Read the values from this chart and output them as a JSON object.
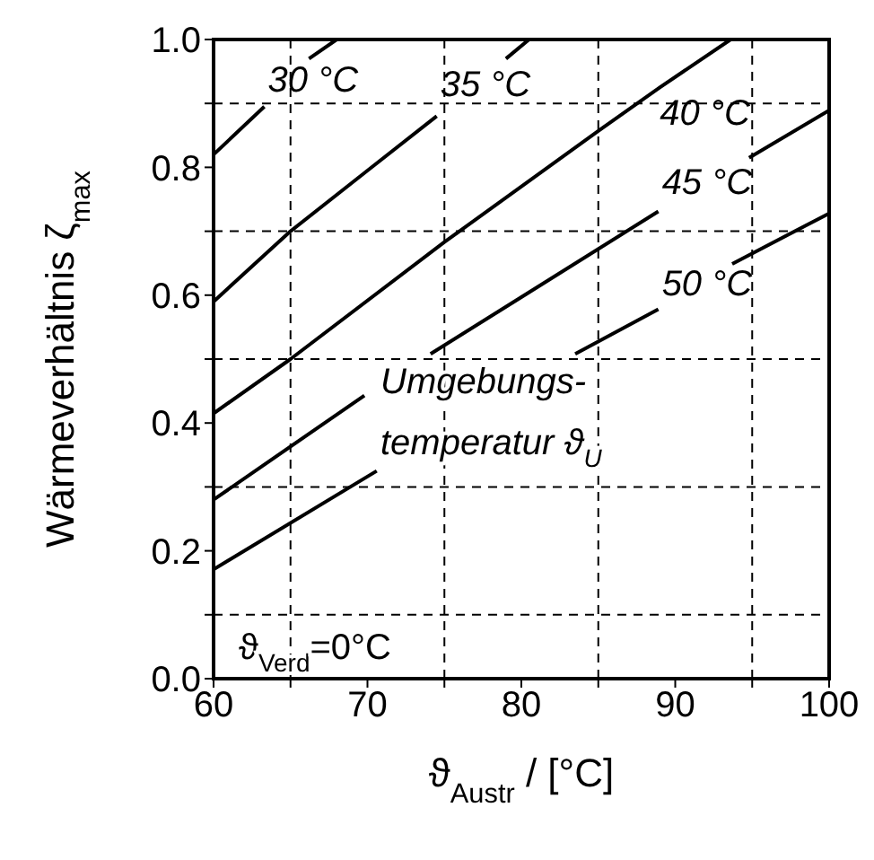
{
  "chart_data": {
    "type": "line",
    "xlabel": "ϑ$_{Austr}$ / [°C]",
    "ylabel": "Wärmeverhältnis ζ$_{max}$",
    "xlim": [
      60,
      100
    ],
    "ylim": [
      0,
      1
    ],
    "xticks": [
      60,
      {
        "value": 65,
        "label": null
      },
      70,
      {
        "value": 75,
        "label": null
      },
      80,
      {
        "value": 85,
        "label": null
      },
      90,
      {
        "value": 95,
        "label": null
      },
      100
    ],
    "yticks": [
      {
        "value": 0,
        "label": "0.0"
      },
      {
        "value": 0.1,
        "label": null
      },
      {
        "value": 0.2,
        "label": "0.2"
      },
      {
        "value": 0.3,
        "label": null
      },
      {
        "value": 0.4,
        "label": "0.4"
      },
      {
        "value": 0.5,
        "label": null
      },
      {
        "value": 0.6,
        "label": "0.6"
      },
      {
        "value": 0.7,
        "label": null
      },
      {
        "value": 0.8,
        "label": "0.8"
      },
      {
        "value": 0.9,
        "label": null
      },
      {
        "value": 1,
        "label": "1.0"
      }
    ],
    "grid": true,
    "series": [
      {
        "name": "30 °C",
        "color": "#000000",
        "x": [
          60,
          63.3,
          64.7,
          66.2,
          68
        ],
        "values": [
          0.82,
          0.895,
          null,
          0.97,
          1.0
        ]
      },
      {
        "name": "35 °C",
        "color": "#000000",
        "x": [
          60,
          65,
          70,
          74.5,
          76.7,
          79,
          80.5
        ],
        "values": [
          0.59,
          0.7,
          0.795,
          0.88,
          null,
          0.97,
          1.0
        ]
      },
      {
        "name": "40 °C",
        "color": "#000000",
        "x": [
          60,
          65,
          75,
          85,
          89,
          93.6
        ],
        "values": [
          0.415,
          0.5,
          0.683,
          0.857,
          0.925,
          1.0
        ]
      },
      {
        "name": "45 °C",
        "color": "#000000",
        "x": [
          60,
          69.8,
          72,
          74.1,
          80,
          88.9,
          91.8,
          94.8,
          100
        ],
        "values": [
          0.28,
          0.443,
          null,
          0.508,
          0.597,
          0.731,
          null,
          0.815,
          0.889
        ]
      },
      {
        "name": "50 °C",
        "color": "#000000",
        "x": [
          60,
          70.6,
          77,
          83.5,
          88.9,
          91.3,
          93.7,
          100
        ],
        "values": [
          0.171,
          0.325,
          null,
          0.508,
          0.578,
          null,
          0.649,
          0.728
        ]
      }
    ],
    "annotations": [
      "Umgebungs-\ntemperatur ϑ$_{U}$",
      "ϑ$_{Verd}$=0°C"
    ]
  }
}
